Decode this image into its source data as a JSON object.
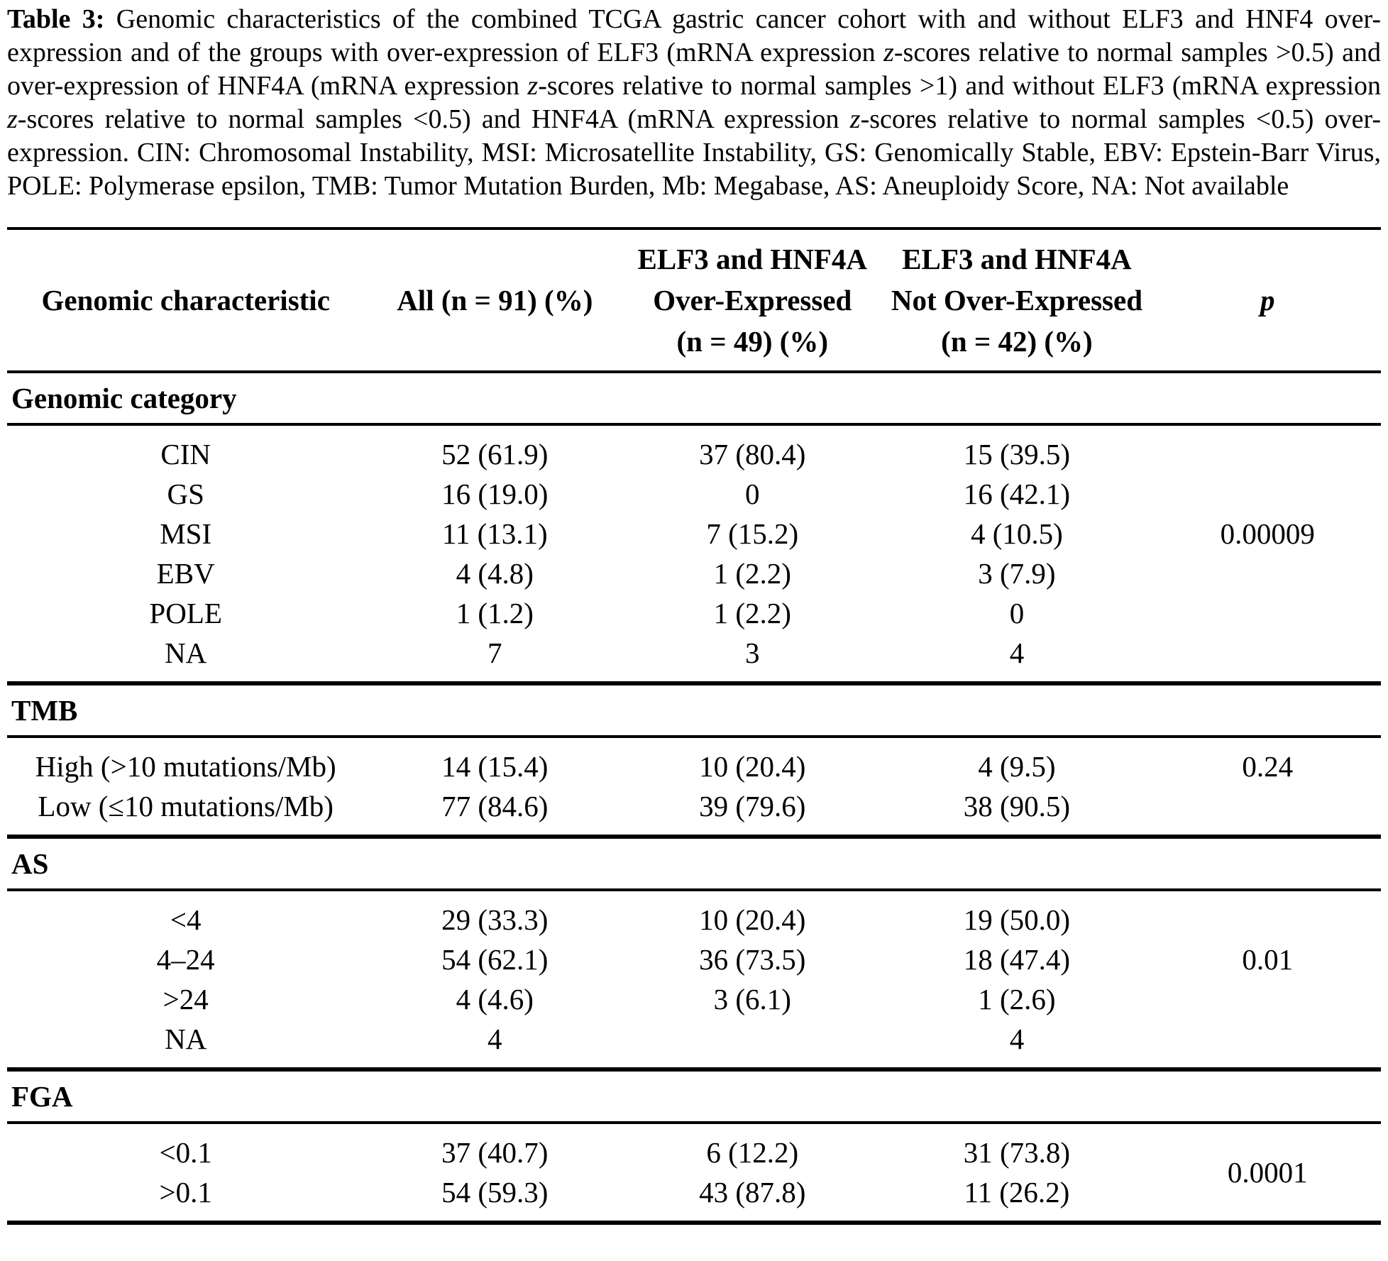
{
  "caption": {
    "bold_label": "Table 3:",
    "z": "z",
    "s1": " Genomic characteristics of the combined TCGA gastric cancer cohort with and without ELF3 and HNF4 over-expression and of the groups with over-expression of ELF3 (mRNA expression ",
    "s2": "-scores relative to normal samples >0.5) and over-expression of HNF4A (mRNA expression ",
    "s3": "-scores relative to normal samples >1) and without ELF3 (mRNA expression ",
    "s4": "-scores relative to normal samples <0.5) and HNF4A (mRNA expression ",
    "s5": "-scores relative to normal samples <0.5) over-expression. CIN: Chromosomal Instability, MSI: Microsatellite Instability, GS: Genomically Stable, EBV: Epstein-Barr Virus, POLE: Polymerase epsilon, TMB: Tumor Mutation Burden, Mb: Megabase, AS: Aneuploidy Score, NA: Not available"
  },
  "table": {
    "header": {
      "characteristic": "Genomic characteristic",
      "all": "All (n = 91) (%)",
      "over_line1": "ELF3 and HNF4A",
      "over_line2": "Over-Expressed",
      "over_line3": "(n = 49) (%)",
      "notover_line1": "ELF3 and HNF4A",
      "notover_line2": "Not Over-Expressed",
      "notover_line3": "(n = 42) (%)",
      "p": "p"
    },
    "sections": [
      {
        "title": "Genomic category",
        "rows": [
          {
            "label": "CIN",
            "all": "52 (61.9)",
            "over": "37 (80.4)",
            "not_over": "15 (39.5)",
            "p": ""
          },
          {
            "label": "GS",
            "all": "16 (19.0)",
            "over": "0",
            "not_over": "16 (42.1)",
            "p": ""
          },
          {
            "label": "MSI",
            "all": "11 (13.1)",
            "over": "7 (15.2)",
            "not_over": "4 (10.5)",
            "p": "0.00009"
          },
          {
            "label": "EBV",
            "all": "4 (4.8)",
            "over": "1 (2.2)",
            "not_over": "3 (7.9)",
            "p": ""
          },
          {
            "label": "POLE",
            "all": "1 (1.2)",
            "over": "1 (2.2)",
            "not_over": "0",
            "p": ""
          },
          {
            "label": "NA",
            "all": "7",
            "over": "3",
            "not_over": "4",
            "p": ""
          }
        ]
      },
      {
        "title": "TMB",
        "rows": [
          {
            "label": "High (>10 mutations/Mb)",
            "all": "14 (15.4)",
            "over": "10 (20.4)",
            "not_over": "4 (9.5)",
            "p": "0.24"
          },
          {
            "label": "Low (≤10 mutations/Mb)",
            "all": "77 (84.6)",
            "over": "39 (79.6)",
            "not_over": "38 (90.5)",
            "p": ""
          }
        ]
      },
      {
        "title": "AS",
        "rows": [
          {
            "label": "<4",
            "all": "29 (33.3)",
            "over": "10 (20.4)",
            "not_over": "19 (50.0)",
            "p": ""
          },
          {
            "label": "4–24",
            "all": "54 (62.1)",
            "over": "36 (73.5)",
            "not_over": "18 (47.4)",
            "p": "0.01"
          },
          {
            "label": ">24",
            "all": "4 (4.6)",
            "over": "3 (6.1)",
            "not_over": "1 (2.6)",
            "p": ""
          },
          {
            "label": "NA",
            "all": "4",
            "over": "",
            "not_over": "4",
            "p": ""
          }
        ]
      },
      {
        "title": "FGA",
        "p_spanning": "0.0001",
        "rows": [
          {
            "label": "<0.1",
            "all": "37 (40.7)",
            "over": "6 (12.2)",
            "not_over": "31 (73.8)"
          },
          {
            "label": ">0.1",
            "all": "54 (59.3)",
            "over": "43 (87.8)",
            "not_over": "11 (26.2)"
          }
        ]
      }
    ]
  }
}
